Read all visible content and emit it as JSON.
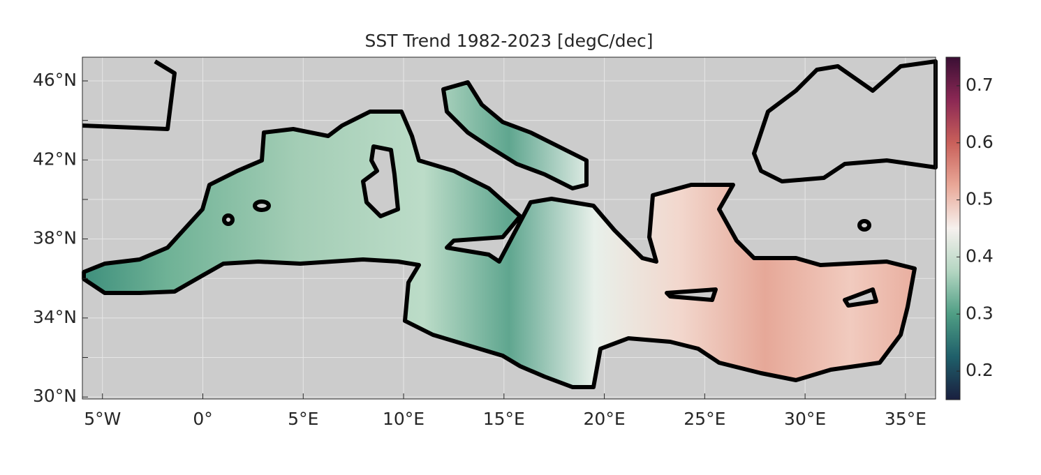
{
  "chart_data": {
    "type": "map",
    "title": "SST Trend 1982-2023 [degC/dec]",
    "xlim": [
      -6,
      36.5
    ],
    "ylim": [
      29.9,
      47.2
    ],
    "xticks": [
      {
        "value": -5,
        "label": "5°W"
      },
      {
        "value": 0,
        "label": "0°"
      },
      {
        "value": 5,
        "label": "5°E"
      },
      {
        "value": 10,
        "label": "10°E"
      },
      {
        "value": 15,
        "label": "15°E"
      },
      {
        "value": 20,
        "label": "20°E"
      },
      {
        "value": 25,
        "label": "25°E"
      },
      {
        "value": 30,
        "label": "30°E"
      },
      {
        "value": 35,
        "label": "35°E"
      }
    ],
    "yticks": [
      {
        "value": 30,
        "label": "30°N"
      },
      {
        "value": 34,
        "label": "34°N"
      },
      {
        "value": 38,
        "label": "38°N"
      },
      {
        "value": 42,
        "label": "42°N"
      },
      {
        "value": 46,
        "label": "46°N"
      }
    ],
    "y_minor_ticks": [
      32,
      36,
      40,
      44
    ],
    "grid": true,
    "clim": [
      0.15,
      0.75
    ],
    "cticks": [
      0.2,
      0.3,
      0.4,
      0.5,
      0.6,
      0.7
    ],
    "colormap": [
      "#1a1f3f",
      "#1f5f6a",
      "#4f9e84",
      "#b4d6c2",
      "#f6f1ee",
      "#e9a898",
      "#c9605a",
      "#8b2854",
      "#3a0f34"
    ]
  }
}
